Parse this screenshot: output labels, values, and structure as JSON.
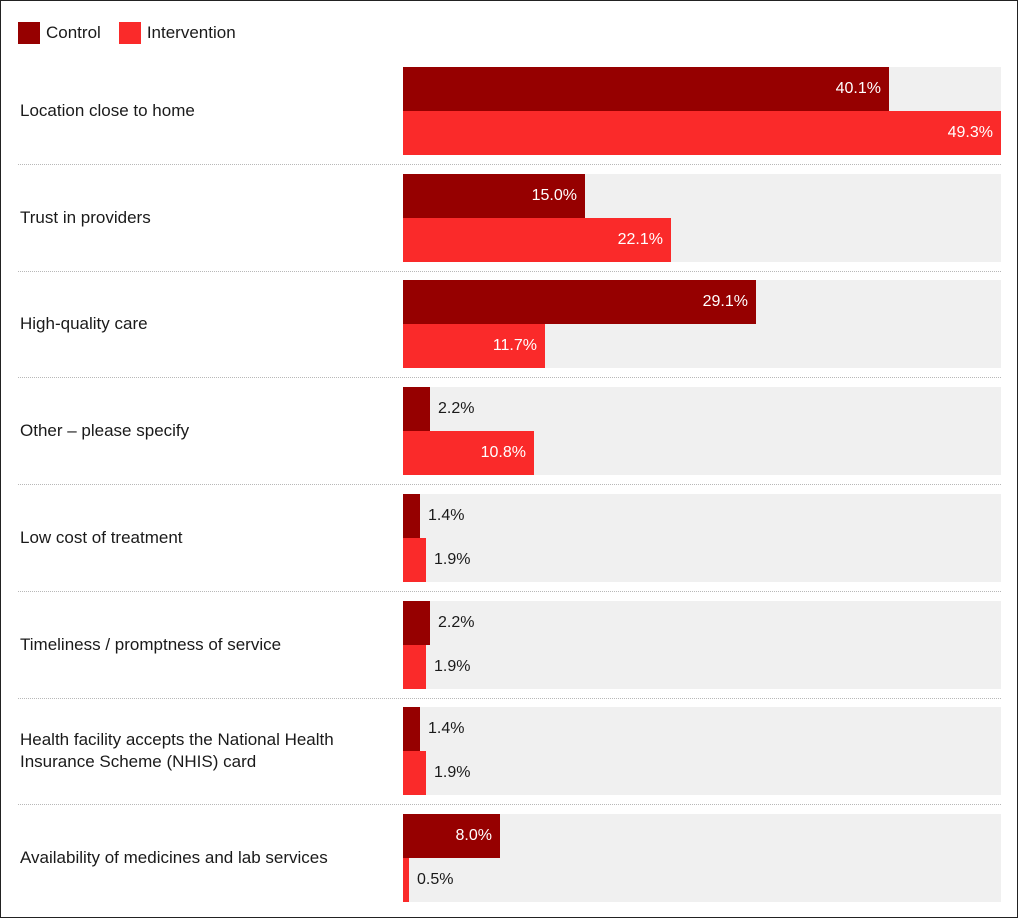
{
  "legend": {
    "items": [
      {
        "label": "Control",
        "color": "#960000"
      },
      {
        "label": "Intervention",
        "color": "#fa2a2a"
      }
    ]
  },
  "chart_data": {
    "type": "bar",
    "orientation": "horizontal",
    "grouped": true,
    "legend_position": "top-left",
    "categories": [
      "Location close to home",
      "Trust in providers",
      "High-quality care",
      "Other – please specify",
      "Low cost of treatment",
      "Timeliness / promptness of service",
      "Health facility accepts the National Health Insurance Scheme (NHIS) card",
      "Availability of medicines and lab services"
    ],
    "series": [
      {
        "name": "Control",
        "color": "#960000",
        "values": [
          40.1,
          15.0,
          29.1,
          2.2,
          1.4,
          2.2,
          1.4,
          8.0
        ],
        "labels": [
          "40.1%",
          "15.0%",
          "29.1%",
          "2.2%",
          "1.4%",
          "2.2%",
          "1.4%",
          "8.0%"
        ]
      },
      {
        "name": "Intervention",
        "color": "#fa2a2a",
        "values": [
          49.3,
          22.1,
          11.7,
          10.8,
          1.9,
          1.9,
          1.9,
          0.5
        ],
        "labels": [
          "49.3%",
          "22.1%",
          "11.7%",
          "10.8%",
          "1.9%",
          "1.9%",
          "1.9%",
          "0.5%"
        ]
      }
    ],
    "xlim": [
      0,
      49.3
    ],
    "value_suffix": "%",
    "grid": false,
    "track_color": "#f0f0f0"
  }
}
